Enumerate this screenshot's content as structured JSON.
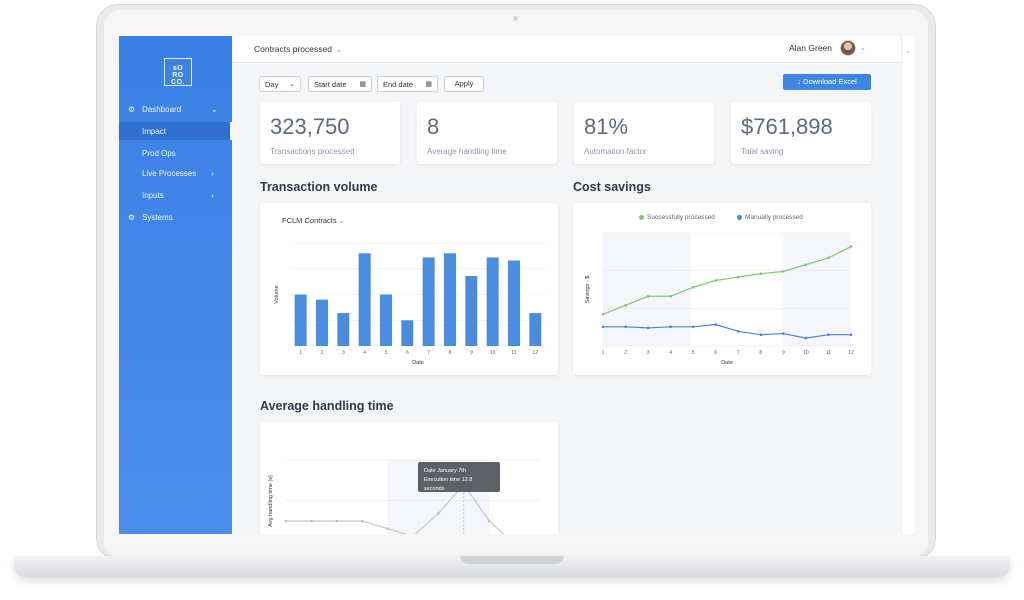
{
  "logo": {
    "line1": "sO",
    "line2": "RO CO."
  },
  "sidebar": {
    "items": [
      {
        "label": "Dashboard",
        "icon": "gear-icon"
      },
      {
        "label": "Impact"
      },
      {
        "label": "Prod Ops"
      },
      {
        "label": "Live Processes"
      },
      {
        "label": "Inputs"
      },
      {
        "label": "Systems",
        "icon": "gear-icon"
      }
    ]
  },
  "topbar": {
    "page_select": "Contracts processed",
    "user_name": "Alan Green"
  },
  "filters": {
    "period": "Day",
    "start_date": "Start date",
    "end_date": "End date",
    "apply": "Apply",
    "download": "↓  Download Excel"
  },
  "kpis": [
    {
      "value": "323,750",
      "label": "Transactions processed"
    },
    {
      "value": "8",
      "label": "Average handling time"
    },
    {
      "value": "81%",
      "label": "Automation factor"
    },
    {
      "value": "$761,898",
      "label": "Total saving"
    }
  ],
  "sections": {
    "transaction_volume": "Transaction volume",
    "cost_savings": "Cost savings",
    "avg_handling": "Average handling time"
  },
  "colors": {
    "accent": "#3d86e6",
    "bar": "#4a8de0",
    "green": "#7ec66c",
    "blue": "#4a84dd"
  },
  "chart_data": [
    {
      "type": "bar",
      "subtitle": "FCLM Contracts",
      "xlabel": "Date",
      "ylabel": "Volume",
      "categories": [
        "1",
        "2",
        "3",
        "4",
        "5",
        "6",
        "7",
        "8",
        "9",
        "10",
        "11",
        "12"
      ],
      "values": [
        50,
        45,
        32,
        90,
        50,
        25,
        86,
        90,
        68,
        86,
        83,
        32
      ],
      "ylim": [
        0,
        100
      ]
    },
    {
      "type": "line",
      "xlabel": "Date",
      "ylabel": "Savings - $",
      "categories": [
        "1",
        "2",
        "3",
        "4",
        "5",
        "6",
        "7",
        "8",
        "9",
        "10",
        "11",
        "12"
      ],
      "series": [
        {
          "name": "Successfully processed",
          "values": [
            28,
            36,
            44,
            44,
            52,
            58,
            61,
            64,
            66,
            72,
            78,
            88
          ]
        },
        {
          "name": "Manually processed",
          "values": [
            17,
            17,
            16,
            17,
            17,
            19,
            13,
            10,
            11,
            7,
            10,
            10
          ]
        }
      ],
      "ylim": [
        0,
        100
      ]
    },
    {
      "type": "line",
      "ylabel": "Avg handling time (s)",
      "series": [
        {
          "values": [
            8,
            8,
            8,
            8,
            7,
            6,
            9,
            12.8,
            8,
            5,
            3
          ]
        }
      ],
      "ylim": [
        0,
        16
      ]
    }
  ],
  "tooltip": {
    "line1": "Date January 7th",
    "line2": "Execution time 12.8 seconds"
  }
}
